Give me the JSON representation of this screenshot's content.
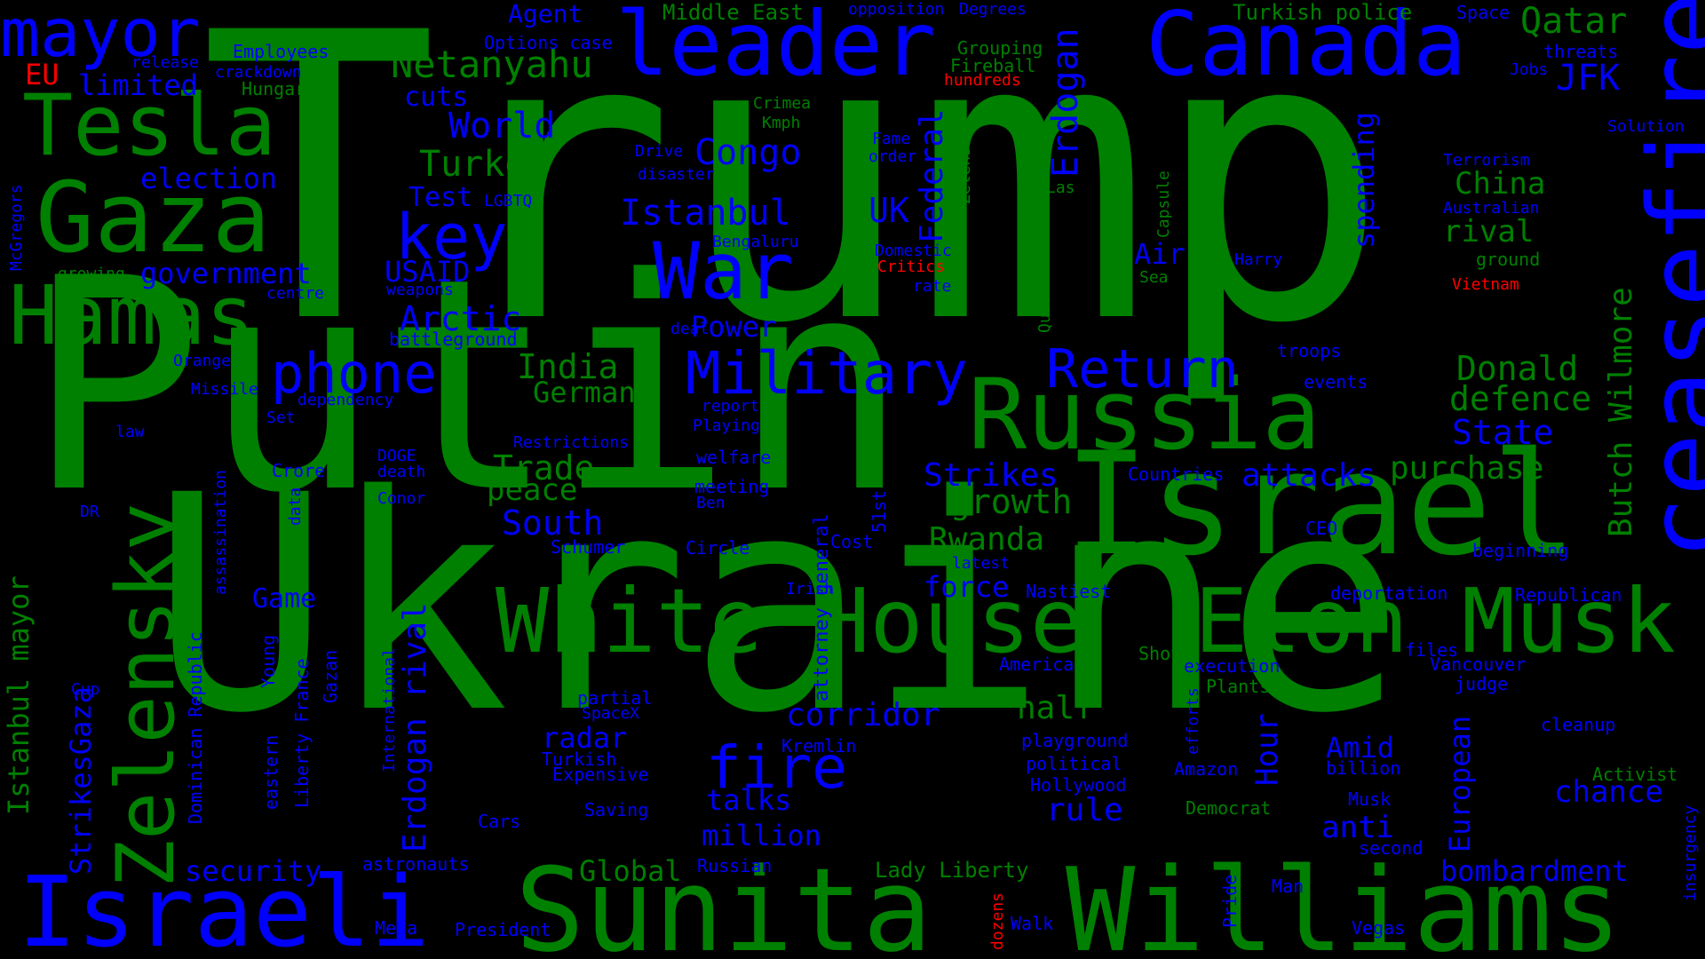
{
  "colors": {
    "background": "#000000",
    "green": "#008000",
    "blue": "#0000ff",
    "red": "#ff0000"
  },
  "words": [
    {
      "text": "Trump",
      "color": "green"
    },
    {
      "text": "Putin",
      "color": "green"
    },
    {
      "text": "Ukraine",
      "color": "green"
    },
    {
      "text": "Israel",
      "color": "green"
    },
    {
      "text": "ceasefire",
      "color": "blue"
    },
    {
      "text": "Sunita",
      "color": "green"
    },
    {
      "text": "Williams",
      "color": "green"
    },
    {
      "text": "White House",
      "color": "green"
    },
    {
      "text": "Elon Musk",
      "color": "green"
    },
    {
      "text": "Russia",
      "color": "green"
    },
    {
      "text": "Israeli",
      "color": "blue"
    },
    {
      "text": "Canada",
      "color": "blue"
    },
    {
      "text": "leader",
      "color": "blue"
    },
    {
      "text": "Gaza",
      "color": "green"
    },
    {
      "text": "Tesla",
      "color": "green"
    },
    {
      "text": "Hamas",
      "color": "green"
    },
    {
      "text": "mayor",
      "color": "blue"
    },
    {
      "text": "War",
      "color": "blue"
    },
    {
      "text": "Zelensky",
      "color": "green"
    },
    {
      "text": "key",
      "color": "blue"
    },
    {
      "text": "Military",
      "color": "blue"
    },
    {
      "text": "phone",
      "color": "blue"
    },
    {
      "text": "Return",
      "color": "blue"
    },
    {
      "text": "fire",
      "color": "blue"
    },
    {
      "text": "Netanyahu",
      "color": "green"
    },
    {
      "text": "Congo",
      "color": "blue"
    },
    {
      "text": "Istanbul",
      "color": "blue"
    },
    {
      "text": "Turkey",
      "color": "green"
    },
    {
      "text": "World",
      "color": "blue"
    },
    {
      "text": "Qatar",
      "color": "green"
    },
    {
      "text": "JFK",
      "color": "blue"
    },
    {
      "text": "China",
      "color": "green"
    },
    {
      "text": "rival",
      "color": "green"
    },
    {
      "text": "Donald",
      "color": "green"
    },
    {
      "text": "defence",
      "color": "green"
    },
    {
      "text": "State",
      "color": "blue"
    },
    {
      "text": "purchase",
      "color": "green"
    },
    {
      "text": "attacks",
      "color": "blue"
    },
    {
      "text": "Strikes",
      "color": "blue"
    },
    {
      "text": "growth",
      "color": "green"
    },
    {
      "text": "Rwanda",
      "color": "green"
    },
    {
      "text": "Trade",
      "color": "green"
    },
    {
      "text": "peace",
      "color": "green"
    },
    {
      "text": "South",
      "color": "blue"
    },
    {
      "text": "India",
      "color": "green"
    },
    {
      "text": "Germany",
      "color": "green"
    },
    {
      "text": "Power",
      "color": "blue"
    },
    {
      "text": "Arctic",
      "color": "blue"
    },
    {
      "text": "USAID",
      "color": "blue"
    },
    {
      "text": "government",
      "color": "blue"
    },
    {
      "text": "election",
      "color": "blue"
    },
    {
      "text": "limited",
      "color": "blue"
    },
    {
      "text": "cuts",
      "color": "blue"
    },
    {
      "text": "Test",
      "color": "blue"
    },
    {
      "text": "LGBTQ",
      "color": "blue"
    },
    {
      "text": "Agent",
      "color": "blue"
    },
    {
      "text": "Options case",
      "color": "blue"
    },
    {
      "text": "Middle East",
      "color": "green"
    },
    {
      "text": "opposition",
      "color": "blue"
    },
    {
      "text": "Degrees",
      "color": "blue"
    },
    {
      "text": "Grouping",
      "color": "green"
    },
    {
      "text": "Fireball",
      "color": "green"
    },
    {
      "text": "hundreds",
      "color": "red"
    },
    {
      "text": "Turkish police",
      "color": "green"
    },
    {
      "text": "Space",
      "color": "blue"
    },
    {
      "text": "threats",
      "color": "blue"
    },
    {
      "text": "Jobs",
      "color": "blue"
    },
    {
      "text": "Solution",
      "color": "blue"
    },
    {
      "text": "Terrorism",
      "color": "blue"
    },
    {
      "text": "Australian",
      "color": "blue"
    },
    {
      "text": "ground",
      "color": "green"
    },
    {
      "text": "Vietnam",
      "color": "red"
    },
    {
      "text": "Harry",
      "color": "blue"
    },
    {
      "text": "Sea",
      "color": "green"
    },
    {
      "text": "Air",
      "color": "blue"
    },
    {
      "text": "Las",
      "color": "green"
    },
    {
      "text": "Capsule",
      "color": "green"
    },
    {
      "text": "spending",
      "color": "blue"
    },
    {
      "text": "Erdogan",
      "color": "blue"
    },
    {
      "text": "Zelenskyy",
      "color": "green"
    },
    {
      "text": "Federal",
      "color": "blue"
    },
    {
      "text": "UK",
      "color": "blue"
    },
    {
      "text": "Fame",
      "color": "blue"
    },
    {
      "text": "order",
      "color": "blue"
    },
    {
      "text": "Crimea",
      "color": "green"
    },
    {
      "text": "Kmph",
      "color": "green"
    },
    {
      "text": "Drive",
      "color": "blue"
    },
    {
      "text": "disaster",
      "color": "blue"
    },
    {
      "text": "Bengaluru",
      "color": "blue"
    },
    {
      "text": "Domestic",
      "color": "blue"
    },
    {
      "text": "Critics",
      "color": "red"
    },
    {
      "text": "rate",
      "color": "blue"
    },
    {
      "text": "deal",
      "color": "blue"
    },
    {
      "text": "Quad",
      "color": "green"
    },
    {
      "text": "battleground",
      "color": "blue"
    },
    {
      "text": "weapons",
      "color": "blue"
    },
    {
      "text": "centre",
      "color": "blue"
    },
    {
      "text": "growing",
      "color": "green"
    },
    {
      "text": "EU",
      "color": "red"
    },
    {
      "text": "release",
      "color": "blue"
    },
    {
      "text": "crackdown",
      "color": "blue"
    },
    {
      "text": "Hungarys",
      "color": "green"
    },
    {
      "text": "Employees",
      "color": "blue"
    },
    {
      "text": "McGregors",
      "color": "blue"
    },
    {
      "text": "Orange",
      "color": "blue"
    },
    {
      "text": "Missile",
      "color": "blue"
    },
    {
      "text": "dependency",
      "color": "blue"
    },
    {
      "text": "Set",
      "color": "blue"
    },
    {
      "text": "law",
      "color": "blue"
    },
    {
      "text": "Restrictions",
      "color": "blue"
    },
    {
      "text": "report",
      "color": "blue"
    },
    {
      "text": "Playing",
      "color": "blue"
    },
    {
      "text": "welfare",
      "color": "blue"
    },
    {
      "text": "meeting",
      "color": "blue"
    },
    {
      "text": "Ben",
      "color": "blue"
    },
    {
      "text": "DOGE",
      "color": "blue"
    },
    {
      "text": "death",
      "color": "blue"
    },
    {
      "text": "Conor",
      "color": "blue"
    },
    {
      "text": "Crore",
      "color": "blue"
    },
    {
      "text": "data",
      "color": "blue"
    },
    {
      "text": "DR",
      "color": "blue"
    },
    {
      "text": "assassination",
      "color": "blue"
    },
    {
      "text": "Istanbul mayor",
      "color": "green"
    },
    {
      "text": "StrikesGaza",
      "color": "blue"
    },
    {
      "text": "Erdogan rival",
      "color": "blue"
    },
    {
      "text": "Dominican Republic",
      "color": "blue"
    },
    {
      "text": "Young",
      "color": "blue"
    },
    {
      "text": "Liberty France",
      "color": "blue"
    },
    {
      "text": "Gazan",
      "color": "blue"
    },
    {
      "text": "International",
      "color": "blue"
    },
    {
      "text": "eastern",
      "color": "blue"
    },
    {
      "text": "Cup",
      "color": "blue"
    },
    {
      "text": "Game",
      "color": "blue"
    },
    {
      "text": "security",
      "color": "blue"
    },
    {
      "text": "Schumer",
      "color": "blue"
    },
    {
      "text": "Circle",
      "color": "blue"
    },
    {
      "text": "Cost",
      "color": "blue"
    },
    {
      "text": "51st",
      "color": "blue"
    },
    {
      "text": "attorney general",
      "color": "blue"
    },
    {
      "text": "Irish",
      "color": "blue"
    },
    {
      "text": "latest",
      "color": "blue"
    },
    {
      "text": "force",
      "color": "blue"
    },
    {
      "text": "Nastiest",
      "color": "blue"
    },
    {
      "text": "corridor",
      "color": "blue"
    },
    {
      "text": "half",
      "color": "green"
    },
    {
      "text": "radar",
      "color": "blue"
    },
    {
      "text": "Turkish",
      "color": "blue"
    },
    {
      "text": "Expensive",
      "color": "blue"
    },
    {
      "text": "partial",
      "color": "blue"
    },
    {
      "text": "SpaceX",
      "color": "blue"
    },
    {
      "text": "Kremlin",
      "color": "blue"
    },
    {
      "text": "talks",
      "color": "blue"
    },
    {
      "text": "million",
      "color": "blue"
    },
    {
      "text": "Saving",
      "color": "blue"
    },
    {
      "text": "Cars",
      "color": "blue"
    },
    {
      "text": "astronauts",
      "color": "blue"
    },
    {
      "text": "Global",
      "color": "green"
    },
    {
      "text": "Russian",
      "color": "blue"
    },
    {
      "text": "Lady Liberty",
      "color": "green"
    },
    {
      "text": "Mega",
      "color": "blue"
    },
    {
      "text": "President",
      "color": "blue"
    },
    {
      "text": "dozens",
      "color": "red"
    },
    {
      "text": "Walk",
      "color": "blue"
    },
    {
      "text": "rule",
      "color": "blue"
    },
    {
      "text": "America",
      "color": "blue"
    },
    {
      "text": "playground",
      "color": "blue"
    },
    {
      "text": "political",
      "color": "blue"
    },
    {
      "text": "Hollywood",
      "color": "blue"
    },
    {
      "text": "Shot",
      "color": "green"
    },
    {
      "text": "execution",
      "color": "blue"
    },
    {
      "text": "Plants",
      "color": "green"
    },
    {
      "text": "efforts",
      "color": "blue"
    },
    {
      "text": "Amazon",
      "color": "blue"
    },
    {
      "text": "Democrat",
      "color": "green"
    },
    {
      "text": "Hour",
      "color": "blue"
    },
    {
      "text": "Pride",
      "color": "blue"
    },
    {
      "text": "Man",
      "color": "blue"
    },
    {
      "text": "Vegas",
      "color": "blue"
    },
    {
      "text": "bombardment",
      "color": "blue"
    },
    {
      "text": "European",
      "color": "blue"
    },
    {
      "text": "Amid",
      "color": "blue"
    },
    {
      "text": "billion",
      "color": "blue"
    },
    {
      "text": "anti",
      "color": "blue"
    },
    {
      "text": "second",
      "color": "blue"
    },
    {
      "text": "Musk",
      "color": "blue"
    },
    {
      "text": "files",
      "color": "blue"
    },
    {
      "text": "Vancouver",
      "color": "blue"
    },
    {
      "text": "judge",
      "color": "blue"
    },
    {
      "text": "cleanup",
      "color": "blue"
    },
    {
      "text": "Activist",
      "color": "green"
    },
    {
      "text": "chance",
      "color": "blue"
    },
    {
      "text": "insurgency",
      "color": "blue"
    },
    {
      "text": "deportation",
      "color": "blue"
    },
    {
      "text": "Republican",
      "color": "blue"
    },
    {
      "text": "beginning",
      "color": "blue"
    },
    {
      "text": "CEO",
      "color": "blue"
    },
    {
      "text": "Countries",
      "color": "blue"
    },
    {
      "text": "Butch Wilmore",
      "color": "green"
    },
    {
      "text": "troops",
      "color": "blue"
    },
    {
      "text": "events",
      "color": "blue"
    }
  ]
}
